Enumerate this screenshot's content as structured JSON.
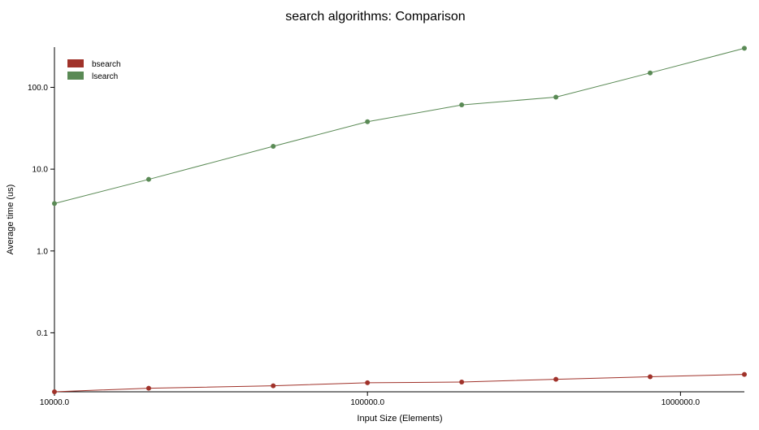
{
  "chart_data": {
    "type": "line",
    "title": "search algorithms: Comparison",
    "xlabel": "Input Size (Elements)",
    "ylabel": "Average time (us)",
    "xscale": "log",
    "yscale": "log",
    "xlim": [
      10000,
      1600000
    ],
    "ylim": [
      0.019,
      310
    ],
    "x_ticks": [
      10000,
      100000,
      1000000
    ],
    "x_tick_labels": [
      "10000.0",
      "100000.0",
      "1000000.0"
    ],
    "y_ticks": [
      0.1,
      1,
      10,
      100
    ],
    "y_tick_labels": [
      "0.1",
      "1.0",
      "10.0",
      "100.0"
    ],
    "grid": false,
    "legend_position": "top-left",
    "x": [
      10000,
      20000,
      50000,
      100000,
      200000,
      400000,
      800000,
      1600000
    ],
    "series": [
      {
        "name": "bsearch",
        "color": "#a0322a",
        "values": [
          0.019,
          0.021,
          0.0225,
          0.0245,
          0.025,
          0.027,
          0.029,
          0.031
        ]
      },
      {
        "name": "lsearch",
        "color": "#5a8a55",
        "values": [
          3.8,
          7.5,
          19,
          38,
          61,
          76,
          150,
          300
        ]
      }
    ]
  }
}
